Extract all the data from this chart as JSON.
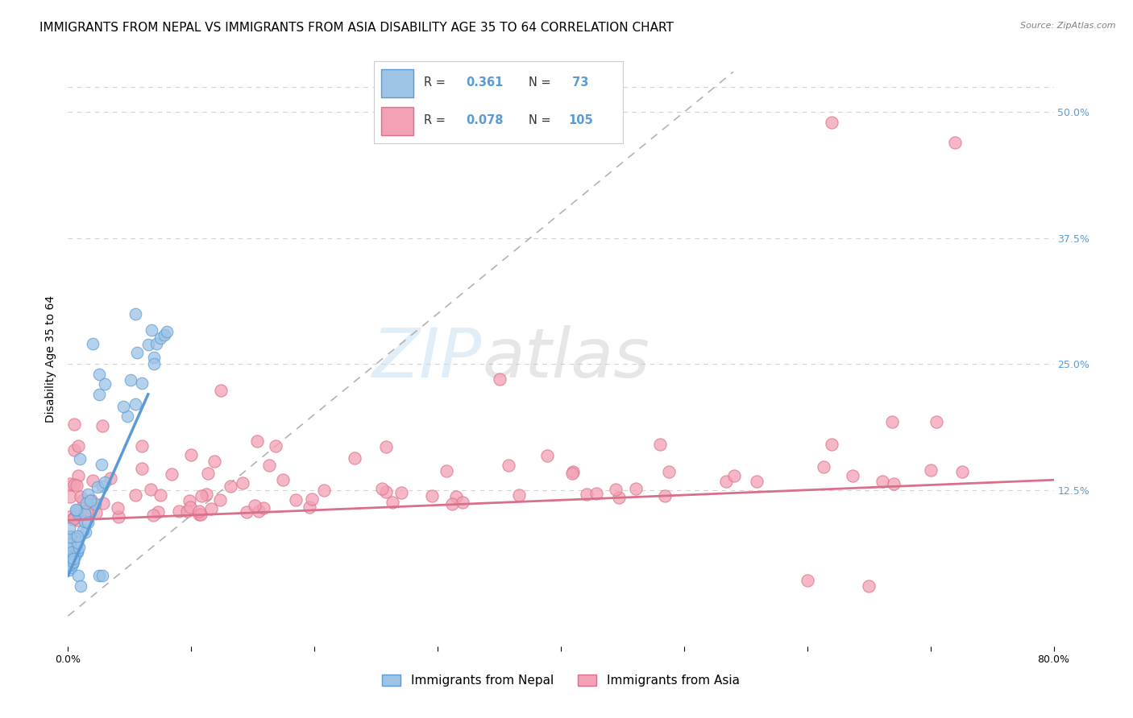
{
  "title": "IMMIGRANTS FROM NEPAL VS IMMIGRANTS FROM ASIA DISABILITY AGE 35 TO 64 CORRELATION CHART",
  "source": "Source: ZipAtlas.com",
  "ylabel": "Disability Age 35 to 64",
  "xlim": [
    0.0,
    0.8
  ],
  "ylim": [
    -0.03,
    0.54
  ],
  "ytick_right_values": [
    0.125,
    0.25,
    0.375,
    0.5
  ],
  "ytick_right_labels": [
    "12.5%",
    "25.0%",
    "37.5%",
    "50.0%"
  ],
  "nepal_color": "#5b9bd5",
  "nepal_color_light": "#9dc3e6",
  "asia_color": "#f4a0b5",
  "asia_color_dark": "#d9708a",
  "nepal_R": "0.361",
  "nepal_N": "73",
  "asia_R": "0.078",
  "asia_N": "105",
  "legend_label_nepal": "Immigrants from Nepal",
  "legend_label_asia": "Immigrants from Asia",
  "watermark_zip": "ZIP",
  "watermark_atlas": "atlas",
  "grid_color": "#cccccc",
  "background_color": "#ffffff",
  "title_fontsize": 11,
  "axis_label_fontsize": 10,
  "tick_fontsize": 9,
  "legend_fontsize": 11,
  "nepal_trend_x": [
    0.0,
    0.065
  ],
  "nepal_trend_y": [
    0.04,
    0.22
  ],
  "asia_trend_x": [
    0.0,
    0.8
  ],
  "asia_trend_y": [
    0.095,
    0.135
  ]
}
